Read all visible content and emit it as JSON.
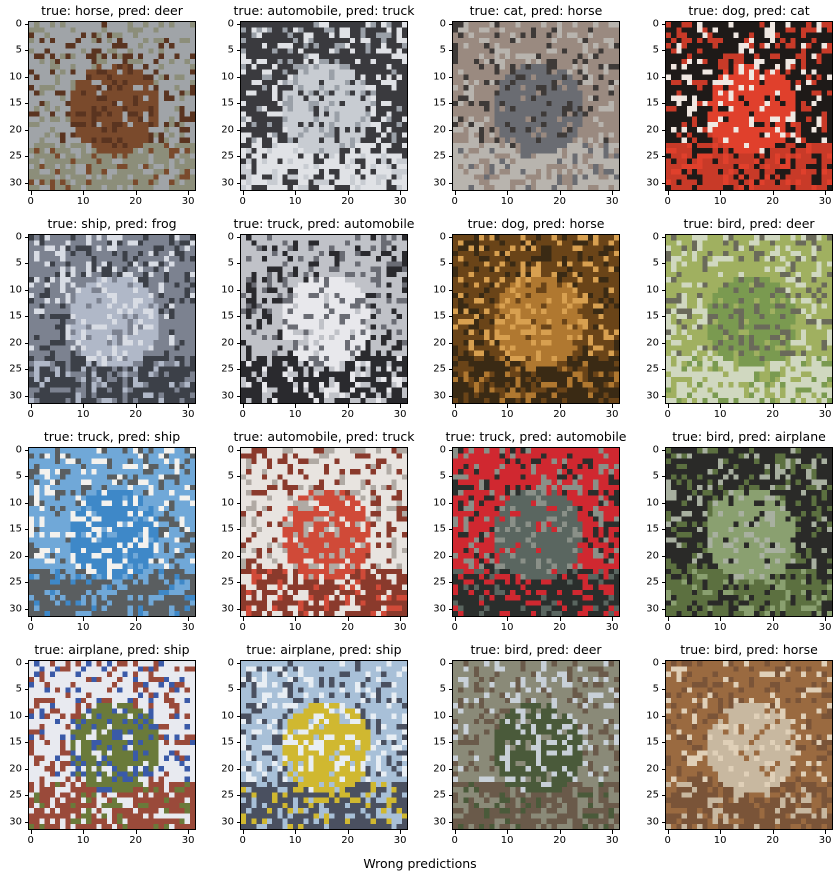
{
  "figure": {
    "suptitle": "Wrong predictions"
  },
  "chart_data": {
    "type": "image-grid",
    "rows": 4,
    "cols": 4,
    "image_size": [
      32,
      32
    ],
    "x_ticks": [
      0,
      10,
      20,
      30
    ],
    "y_ticks": [
      0,
      5,
      10,
      15,
      20,
      25,
      30
    ],
    "panels": [
      {
        "title": "true: horse, pred: deer",
        "true": "horse",
        "pred": "deer",
        "palette": [
          "#7a4a2c",
          "#a0a4a8",
          "#5a3420",
          "#8c8e7a"
        ]
      },
      {
        "title": "true: automobile, pred: truck",
        "true": "automobile",
        "pred": "truck",
        "palette": [
          "#c8ccd2",
          "#3a3a3e",
          "#9aa0a8",
          "#e0e2e6"
        ]
      },
      {
        "title": "true: cat, pred: horse",
        "true": "cat",
        "pred": "horse",
        "palette": [
          "#6a6c72",
          "#9a8a80",
          "#3e3a38",
          "#b8b4ae"
        ]
      },
      {
        "title": "true: dog, pred: cat",
        "true": "dog",
        "pred": "cat",
        "palette": [
          "#e0402c",
          "#1e1a18",
          "#f0e8e2",
          "#c83a28"
        ]
      },
      {
        "title": "true: ship, pred: frog",
        "true": "ship",
        "pred": "frog",
        "palette": [
          "#b0b8c8",
          "#7c8290",
          "#d8dce4",
          "#3c4048"
        ]
      },
      {
        "title": "true: truck, pred: automobile",
        "true": "truck",
        "pred": "automobile",
        "palette": [
          "#e8e8ec",
          "#c0c2c8",
          "#6a6c74",
          "#2a2a2e"
        ]
      },
      {
        "title": "true: dog, pred: horse",
        "true": "dog",
        "pred": "horse",
        "palette": [
          "#b07830",
          "#6a4418",
          "#d8a050",
          "#3a2a14"
        ]
      },
      {
        "title": "true: bird, pred: deer",
        "true": "bird",
        "pred": "deer",
        "palette": [
          "#7a9a50",
          "#a0b060",
          "#6a6a5a",
          "#d0d8c0"
        ]
      },
      {
        "title": "true: truck, pred: ship",
        "true": "truck",
        "pred": "ship",
        "palette": [
          "#3e88c8",
          "#70a8d8",
          "#f4f2ee",
          "#5a5e60"
        ]
      },
      {
        "title": "true: automobile, pred: truck",
        "true": "automobile",
        "pred": "truck",
        "palette": [
          "#d04a38",
          "#e8e4e0",
          "#b0aaa4",
          "#8a3a2c"
        ]
      },
      {
        "title": "true: truck, pred: automobile",
        "true": "truck",
        "pred": "automobile",
        "palette": [
          "#5a6660",
          "#d02830",
          "#8a9088",
          "#2a2e2c"
        ]
      },
      {
        "title": "true: bird, pred: airplane",
        "true": "bird",
        "pred": "airplane",
        "palette": [
          "#8aa070",
          "#2a2a28",
          "#a8b0a0",
          "#5c7040"
        ]
      },
      {
        "title": "true: airplane, pred: ship",
        "true": "airplane",
        "pred": "ship",
        "palette": [
          "#6a7a3a",
          "#e8eaf0",
          "#3a5aa8",
          "#9a4a3a"
        ]
      },
      {
        "title": "true: airplane, pred: ship",
        "true": "airplane",
        "pred": "ship",
        "palette": [
          "#d0b830",
          "#a8c0d8",
          "#e8eef4",
          "#4a5060"
        ]
      },
      {
        "title": "true: bird, pred: deer",
        "true": "bird",
        "pred": "deer",
        "palette": [
          "#4a5a3a",
          "#8a8a78",
          "#c8d0d8",
          "#6a5a4a"
        ]
      },
      {
        "title": "true: bird, pred: horse",
        "true": "bird",
        "pred": "horse",
        "palette": [
          "#c8b8a0",
          "#9a6a40",
          "#e0d0b8",
          "#7a5438"
        ]
      }
    ]
  }
}
